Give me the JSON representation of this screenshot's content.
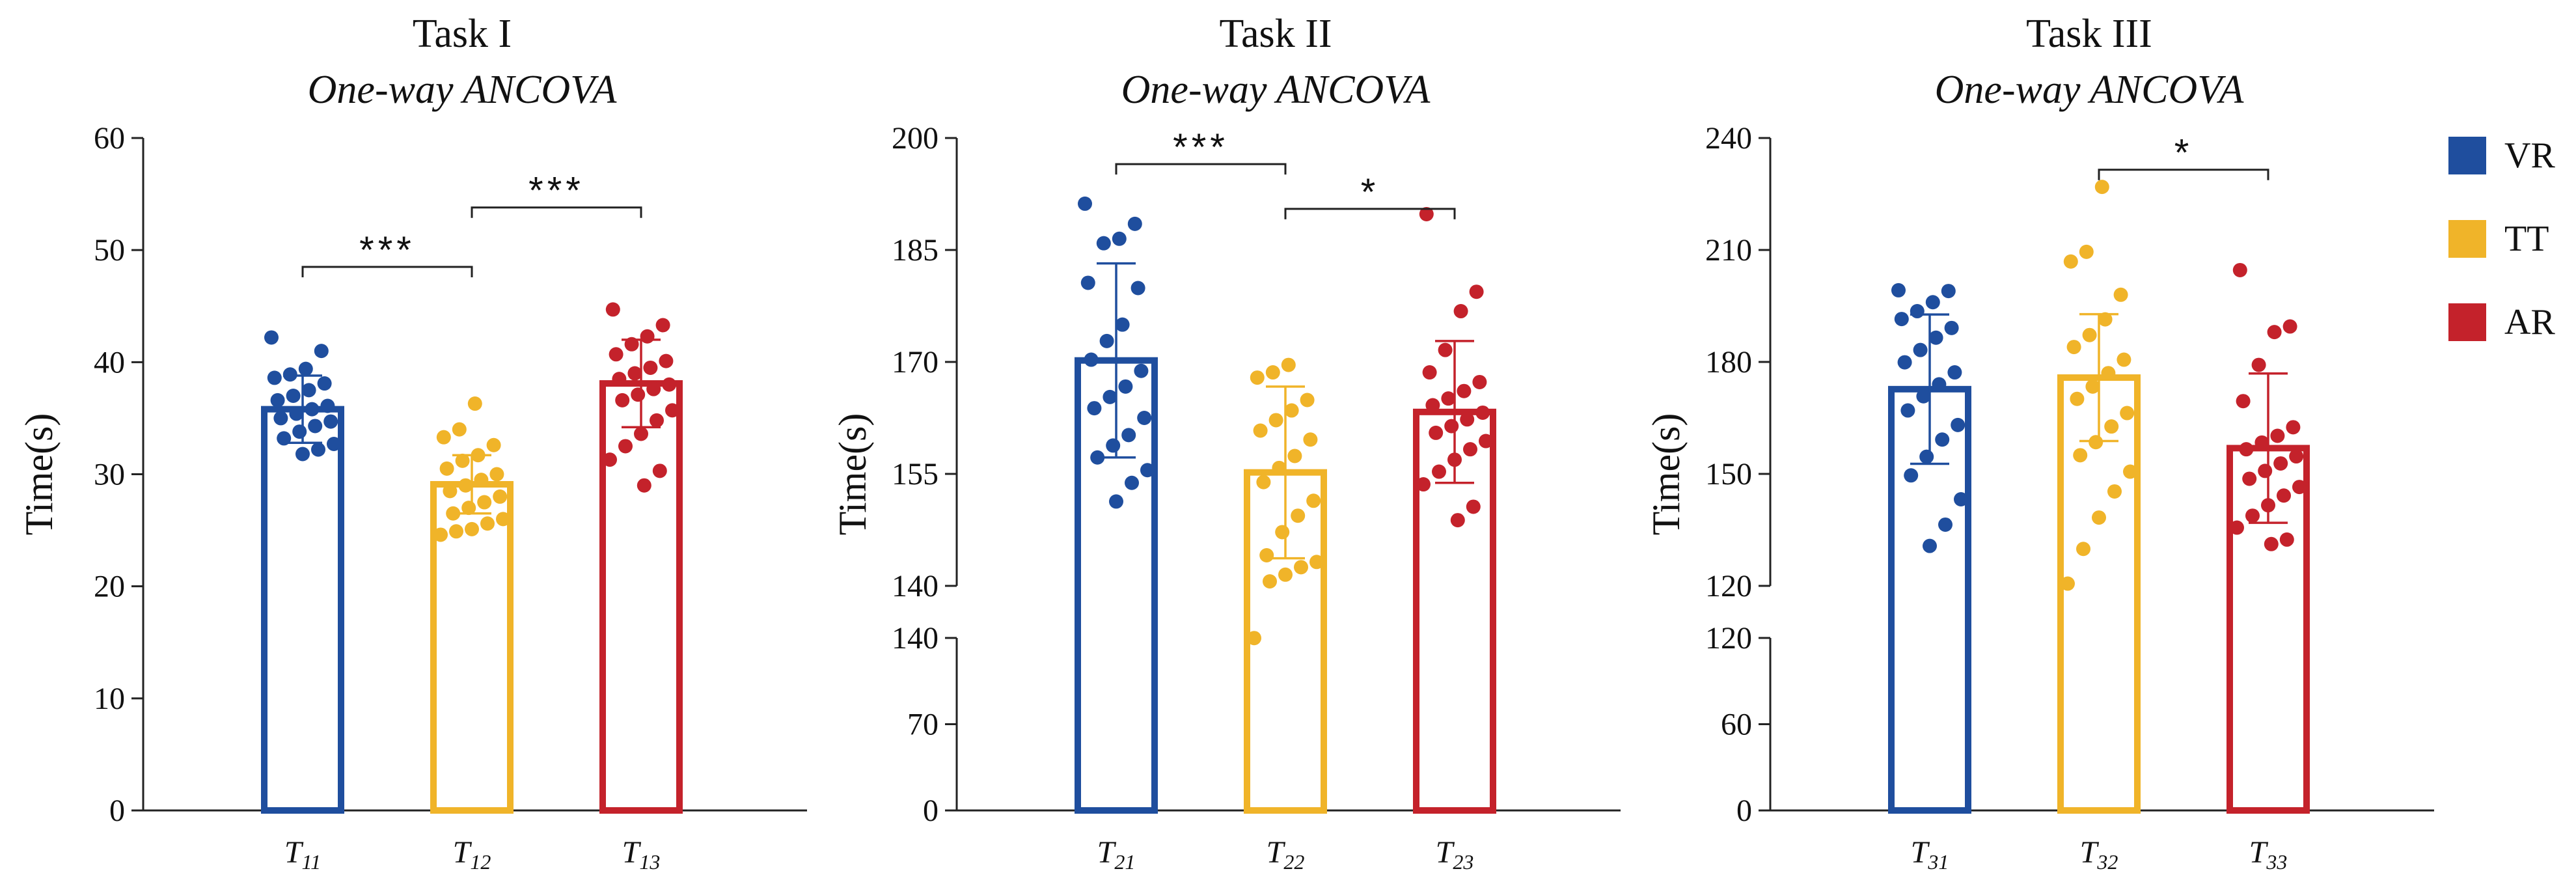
{
  "colors": {
    "VR": "#1f4e9e",
    "TT": "#f0b429",
    "AR": "#c4222b"
  },
  "legend": [
    {
      "label": "VR",
      "color": "#1f4e9e"
    },
    {
      "label": "TT",
      "color": "#f0b429"
    },
    {
      "label": "AR",
      "color": "#c4222b"
    }
  ],
  "chart_data": [
    {
      "type": "bar",
      "title": "Task I",
      "subtitle": "One-way ANCOVA",
      "ylabel": "Time(s)",
      "broken_axis": false,
      "ylim": [
        0,
        60
      ],
      "yticks": [
        0,
        10,
        20,
        30,
        40,
        50,
        60
      ],
      "categories": [
        {
          "main": "T",
          "sub": "11"
        },
        {
          "main": "T",
          "sub": "12"
        },
        {
          "main": "T",
          "sub": "13"
        }
      ],
      "series_colors": [
        "#1f4e9e",
        "#f0b429",
        "#c4222b"
      ],
      "means": [
        35.8,
        29.1,
        38.1
      ],
      "sd": [
        3.0,
        2.6,
        3.9
      ],
      "points": [
        [
          42.2,
          41.0,
          39.4,
          38.9,
          38.6,
          38.1,
          37.5,
          37.0,
          36.6,
          36.1,
          35.8,
          35.4,
          35.0,
          34.7,
          34.3,
          33.8,
          33.2,
          32.7,
          32.2,
          31.8
        ],
        [
          36.3,
          34.0,
          33.3,
          32.6,
          31.7,
          31.2,
          30.5,
          30.0,
          29.5,
          29.0,
          28.5,
          28.0,
          27.5,
          27.0,
          26.5,
          26.0,
          25.6,
          25.1,
          24.9,
          24.6
        ],
        [
          44.7,
          43.3,
          42.3,
          41.6,
          40.7,
          40.1,
          39.5,
          39.0,
          38.5,
          38.0,
          37.6,
          37.1,
          36.6,
          35.7,
          34.8,
          33.6,
          32.5,
          31.3,
          30.3,
          29.0
        ]
      ],
      "significance": [
        {
          "from": 0,
          "to": 1,
          "label": "***",
          "y": 48.5
        },
        {
          "from": 1,
          "to": 2,
          "label": "***",
          "y": 53.8
        }
      ]
    },
    {
      "type": "bar",
      "title": "Task II",
      "subtitle": "One-way ANCOVA",
      "ylabel": "Time(s)",
      "broken_axis": true,
      "lower_ylim": [
        0,
        140
      ],
      "lower_yticks": [
        0,
        70,
        140
      ],
      "upper_ylim": [
        140,
        200
      ],
      "upper_yticks": [
        140,
        155,
        170,
        185,
        200
      ],
      "categories": [
        {
          "main": "T",
          "sub": "21"
        },
        {
          "main": "T",
          "sub": "22"
        },
        {
          "main": "T",
          "sub": "23"
        }
      ],
      "series_colors": [
        "#1f4e9e",
        "#f0b429",
        "#c4222b"
      ],
      "means": [
        170.2,
        155.2,
        163.3
      ],
      "sd": [
        13.0,
        11.5,
        9.5
      ],
      "points": [
        [
          191.2,
          188.5,
          186.5,
          185.9,
          180.6,
          179.9,
          175.0,
          172.8,
          170.3,
          168.8,
          166.7,
          165.3,
          163.8,
          162.5,
          160.2,
          158.8,
          157.2,
          155.5,
          153.8,
          151.3
        ],
        [
          169.6,
          168.6,
          167.9,
          164.9,
          163.5,
          162.2,
          160.8,
          159.6,
          157.4,
          155.8,
          153.9,
          151.4,
          149.4,
          147.2,
          144.1,
          143.2,
          142.5,
          141.5,
          140.6,
          139.9
        ],
        [
          189.8,
          179.4,
          176.8,
          171.6,
          168.6,
          167.3,
          166.1,
          165.1,
          164.2,
          163.2,
          162.3,
          161.4,
          160.5,
          159.4,
          158.3,
          156.9,
          155.3,
          153.6,
          150.6,
          148.8
        ]
      ],
      "significance": [
        {
          "from": 0,
          "to": 1,
          "label": "***",
          "y": 196.5
        },
        {
          "from": 1,
          "to": 2,
          "label": "*",
          "y": 190.5
        }
      ]
    },
    {
      "type": "bar",
      "title": "Task III",
      "subtitle": "One-way ANCOVA",
      "ylabel": "Time(s)",
      "broken_axis": true,
      "lower_ylim": [
        0,
        120
      ],
      "lower_yticks": [
        0,
        60,
        120
      ],
      "upper_ylim": [
        120,
        240
      ],
      "upper_yticks": [
        120,
        150,
        180,
        210,
        240
      ],
      "categories": [
        {
          "main": "T",
          "sub": "31"
        },
        {
          "main": "T",
          "sub": "32"
        },
        {
          "main": "T",
          "sub": "33"
        }
      ],
      "series_colors": [
        "#1f4e9e",
        "#f0b429",
        "#c4222b"
      ],
      "means": [
        172.7,
        175.8,
        156.9
      ],
      "sd": [
        20.0,
        17.0,
        20.0
      ],
      "points": [
        [
          199.2,
          199.0,
          196.0,
          193.6,
          191.5,
          189.1,
          186.5,
          183.2,
          179.9,
          177.2,
          174.0,
          170.8,
          167.0,
          163.1,
          159.2,
          154.6,
          149.6,
          143.2,
          136.4,
          130.7
        ],
        [
          226.9,
          209.5,
          206.9,
          198.0,
          191.4,
          187.2,
          184.0,
          180.6,
          177.0,
          173.4,
          170.1,
          166.3,
          162.7,
          158.5,
          155.0,
          150.6,
          145.3,
          138.3,
          129.9,
          120.6
        ],
        [
          204.6,
          189.5,
          188.0,
          179.2,
          169.5,
          162.5,
          160.2,
          158.4,
          156.6,
          154.7,
          152.8,
          150.8,
          148.7,
          146.5,
          144.2,
          141.6,
          138.8,
          135.6,
          132.4,
          131.2
        ]
      ],
      "significance": [
        {
          "from": 1,
          "to": 2,
          "label": "*",
          "y": 231.5
        }
      ]
    }
  ]
}
